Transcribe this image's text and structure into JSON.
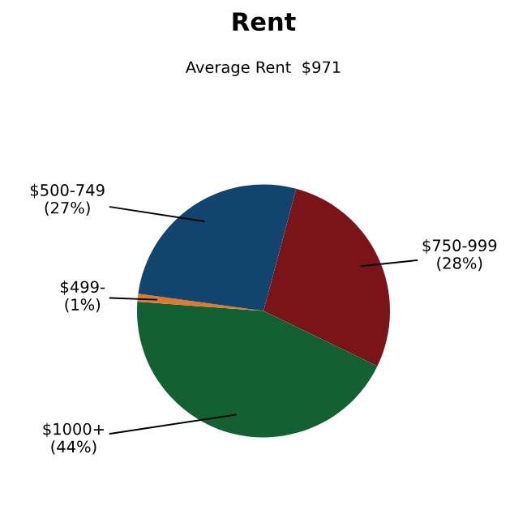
{
  "chart_data": {
    "type": "pie",
    "title": "Rent",
    "subtitle": "Average Rent  $971",
    "categories": [
      "$750-999",
      "$1000+",
      "$499-",
      "$500-749"
    ],
    "values": [
      28,
      44,
      1,
      27
    ],
    "colors": [
      "#7a1418",
      "#136032",
      "#e07a2a",
      "#12456e"
    ],
    "value_labels": [
      "(28%)",
      "(44%)",
      "(1%)",
      "(27%)"
    ]
  }
}
